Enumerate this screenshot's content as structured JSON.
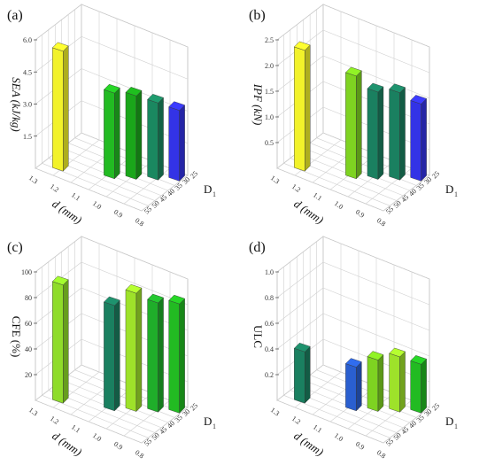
{
  "chart_data": [
    {
      "type": "bar",
      "panel": "(a)",
      "ylabel": "SEA (kJ/kg)",
      "ylabel_italic": true,
      "ylim": [
        0,
        6.0
      ],
      "zticks": [
        "1.5",
        "3.0",
        "4.5",
        "6.0"
      ],
      "xlabel": "d (mm)",
      "xticks": [
        "1.3",
        "1.2",
        "1.1",
        "1.0",
        "0.9",
        "0.8"
      ],
      "dlabel": "D",
      "dlabel_sub": "1",
      "dticks": [
        "25",
        "30",
        "35",
        "40",
        "45",
        "50",
        "55"
      ],
      "values": [
        5.6,
        4.0,
        3.9,
        3.6,
        3.3
      ],
      "colors": [
        "#f2f22a",
        "#22bb22",
        "#1aa61a",
        "#1a8860",
        "#3333e6"
      ],
      "grid": true
    },
    {
      "type": "bar",
      "panel": "(b)",
      "ylabel": "IPF (kN)",
      "ylabel_italic": true,
      "ylim": [
        0,
        2.5
      ],
      "zticks": [
        "0.5",
        "1.0",
        "1.5",
        "2.0",
        "2.5"
      ],
      "xlabel": "d (mm)",
      "xticks": [
        "1.3",
        "1.2",
        "1.1",
        "1.0",
        "0.9",
        "0.8"
      ],
      "dlabel": "D",
      "dlabel_sub": "1",
      "dticks": [
        "25",
        "30",
        "35",
        "40",
        "45",
        "50",
        "55"
      ],
      "values": [
        2.35,
        2.0,
        1.7,
        1.7,
        1.5
      ],
      "colors": [
        "#f2f22a",
        "#7ed321",
        "#1a8060",
        "#1a8060",
        "#3333e6"
      ],
      "grid": true
    },
    {
      "type": "bar",
      "panel": "(c)",
      "ylabel": "CFE (%)",
      "ylabel_italic": false,
      "ylim": [
        0,
        100
      ],
      "zticks": [
        "20",
        "40",
        "60",
        "80",
        "100"
      ],
      "xlabel": "d (mm)",
      "xticks": [
        "1.3",
        "1.2",
        "1.1",
        "1.0",
        "0.9",
        "0.8"
      ],
      "dlabel": "D",
      "dlabel_sub": "1",
      "dticks": [
        "25",
        "30",
        "35",
        "40",
        "45",
        "50",
        "55"
      ],
      "values": [
        92,
        82,
        92,
        85,
        85
      ],
      "colors": [
        "#8fdc2a",
        "#1a8060",
        "#9ee22a",
        "#1fae2a",
        "#22bb22"
      ],
      "grid": true
    },
    {
      "type": "bar",
      "panel": "(d)",
      "ylabel": "ULC",
      "ylabel_italic": false,
      "ylim": [
        0,
        1.0
      ],
      "zticks": [
        "0.2",
        "0.4",
        "0.6",
        "0.8",
        "1.0"
      ],
      "xlabel": "d (mm)",
      "xticks": [
        "1.3",
        "1.2",
        "1.1",
        "1.0",
        "0.9",
        "0.8"
      ],
      "dlabel": "D",
      "dlabel_sub": "1",
      "dticks": [
        "25",
        "30",
        "35",
        "40",
        "45",
        "50",
        "55"
      ],
      "values": [
        0.4,
        0.34,
        0.4,
        0.43,
        0.38
      ],
      "colors": [
        "#1a8060",
        "#2a5fd0",
        "#7ed321",
        "#9ee22a",
        "#22bb22"
      ],
      "grid": true
    }
  ]
}
